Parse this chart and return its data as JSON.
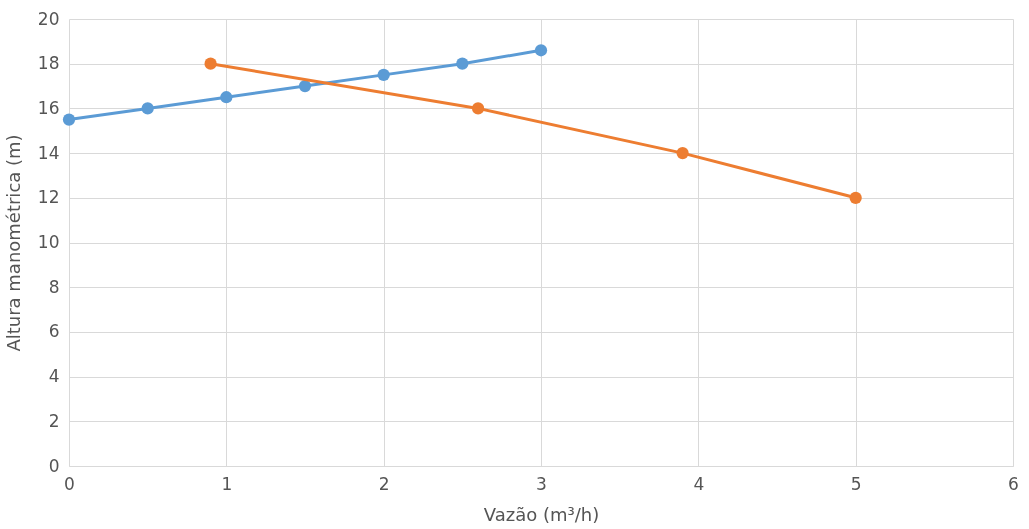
{
  "chart_data": {
    "type": "line",
    "xlabel": "Vazão (m³/h)",
    "ylabel": "Altura manométrica (m)",
    "xlim": [
      0,
      6
    ],
    "xticks": [
      0,
      1,
      2,
      3,
      4,
      5,
      6
    ],
    "ylim": [
      0,
      20
    ],
    "yticks": [
      0,
      2,
      4,
      6,
      8,
      10,
      12,
      14,
      16,
      18,
      20
    ],
    "grid": true,
    "marker": "circle",
    "line_style": "solid",
    "series": [
      {
        "color": "#5b9bd5",
        "x": [
          0,
          0.5,
          1,
          1.5,
          2,
          2.5,
          3
        ],
        "values": [
          15.5,
          16,
          16.5,
          17,
          17.5,
          18,
          18.6
        ]
      },
      {
        "color": "#ed7d31",
        "x": [
          0.9,
          2.6,
          3.9,
          5
        ],
        "values": [
          18,
          16,
          14,
          12
        ]
      }
    ]
  }
}
